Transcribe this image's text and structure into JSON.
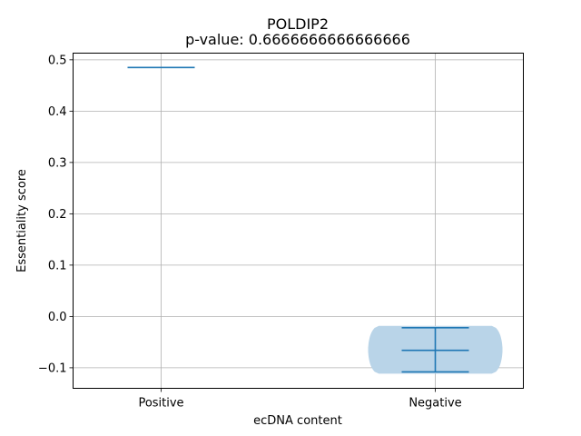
{
  "chart_data": {
    "type": "violin",
    "title": "POLDIP2",
    "subtitle": "p-value: 0.6666666666666666",
    "xlabel": "ecDNA content",
    "ylabel": "Essentiality score",
    "categories": [
      "Positive",
      "Negative"
    ],
    "ylim": [
      -0.14,
      0.513
    ],
    "yticks": [
      -0.1,
      0.0,
      0.1,
      0.2,
      0.3,
      0.4,
      0.5
    ],
    "ytick_labels": [
      "−0.1",
      "0.0",
      "0.1",
      "0.2",
      "0.3",
      "0.4",
      "0.5"
    ],
    "grid": true,
    "violins": [
      {
        "category": "Positive",
        "min": 0.485,
        "max": 0.485,
        "mean": 0.485
      },
      {
        "category": "Negative",
        "min": -0.108,
        "max": -0.022,
        "mean": -0.066
      }
    ],
    "colors": {
      "line": "#1f77b4",
      "body": "#b9d4e8"
    }
  }
}
